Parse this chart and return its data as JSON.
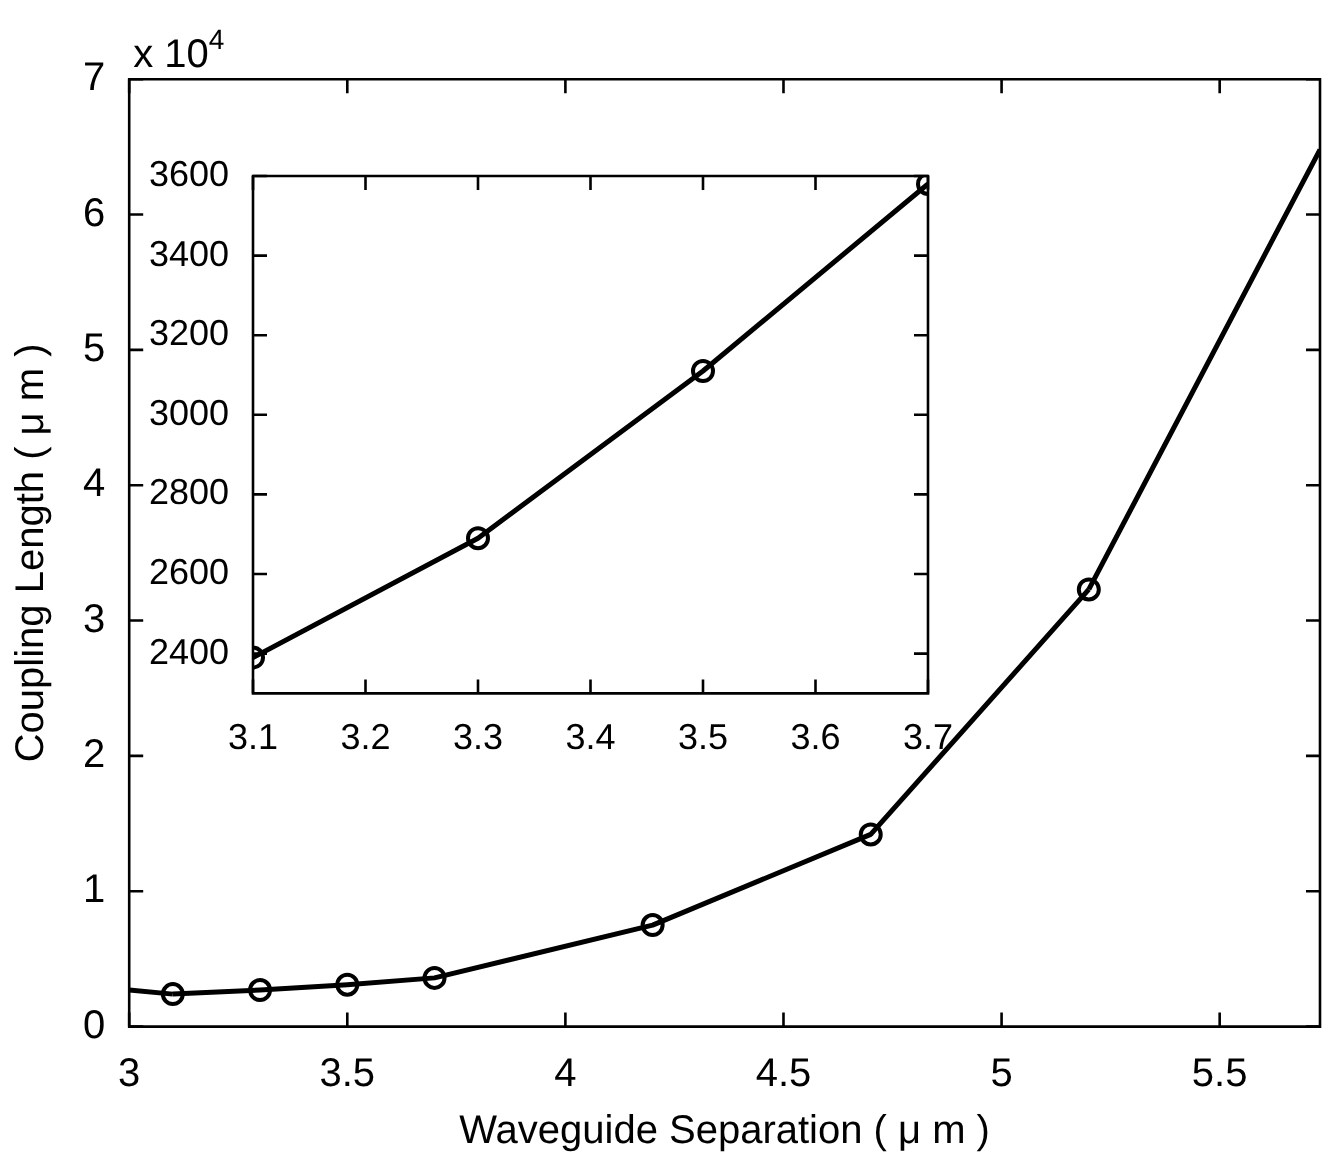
{
  "chart_data": [
    {
      "type": "line",
      "xlabel": "Waveguide Separation ( μ m )",
      "ylabel": "Coupling Length ( μ m )",
      "annotations": [
        "x 10$^{4}$"
      ],
      "series": [
        {
          "color": "#000000",
          "marker": "circle",
          "x": [
            3.1,
            3.3,
            3.5,
            3.7,
            4.2,
            4.7,
            5.2
          ],
          "values": [
            0.24,
            0.27,
            0.31,
            0.36,
            0.75,
            1.42,
            3.23
          ]
        },
        {
          "color": "#000000",
          "marker": "none",
          "x": [
            3,
            3.1,
            4,
            5.2,
            5.73
          ],
          "values": [
            0.27,
            0.24,
            null,
            3.23,
            6.48
          ]
        }
      ],
      "xlim": [
        3,
        5.73
      ],
      "xticks": [
        3,
        3.5,
        4,
        4.5,
        5,
        5.5
      ],
      "ylim": [
        0,
        7
      ],
      "yticks": [
        0,
        1,
        2,
        3,
        4,
        5,
        6,
        7
      ],
      "grid": false,
      "legend": false,
      "line_style": "solid"
    },
    {
      "type": "line",
      "series": [
        {
          "color": "#000000",
          "marker": "circle",
          "x": [
            3.1,
            3.3,
            3.5,
            3.7
          ],
          "values": [
            2390,
            2690,
            3110,
            3580
          ]
        }
      ],
      "xlim": [
        3.1,
        3.7
      ],
      "xticks": [
        3.1,
        3.2,
        3.3,
        3.4,
        3.5,
        3.6,
        3.7
      ],
      "ylim": [
        2300,
        3600
      ],
      "yticks": [
        2400,
        2600,
        2800,
        3000,
        3200,
        3400,
        3600
      ],
      "grid": false,
      "legend": false,
      "line_style": "solid"
    }
  ]
}
